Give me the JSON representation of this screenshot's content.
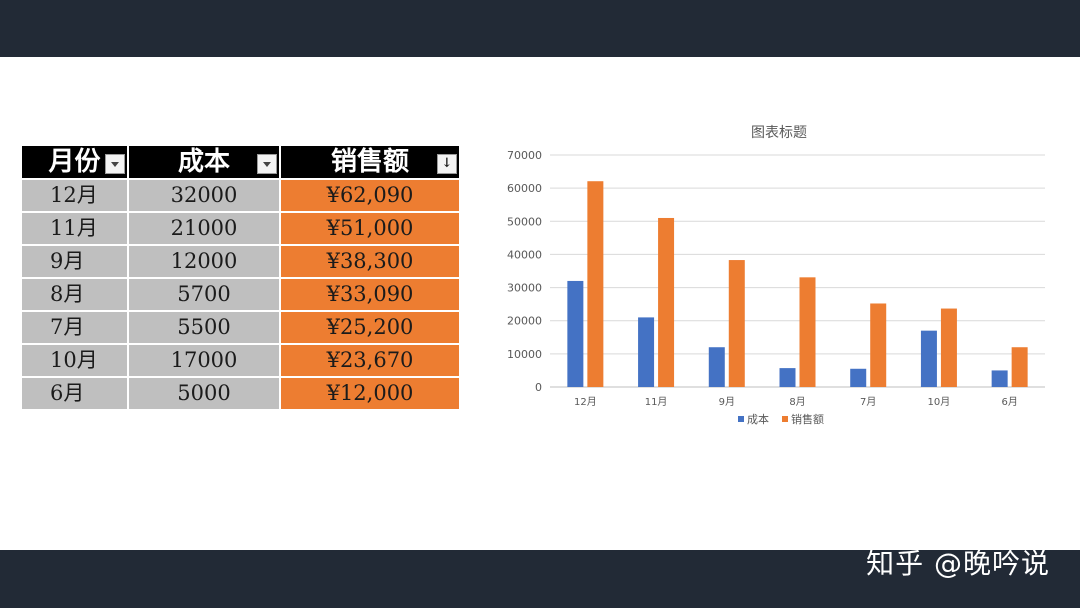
{
  "watermark": "知乎 @晚吟说",
  "table": {
    "headers": [
      "月份",
      "成本",
      "销售额"
    ],
    "rows": [
      {
        "month": "12月",
        "cost": "32000",
        "sales": "¥62,090"
      },
      {
        "month": "11月",
        "cost": "21000",
        "sales": "¥51,000"
      },
      {
        "month": "9月",
        "cost": "12000",
        "sales": "¥38,300"
      },
      {
        "month": "8月",
        "cost": "5700",
        "sales": "¥33,090"
      },
      {
        "month": "7月",
        "cost": "5500",
        "sales": "¥25,200"
      },
      {
        "month": "10月",
        "cost": "17000",
        "sales": "¥23,670"
      },
      {
        "month": "6月",
        "cost": "5000",
        "sales": "¥12,000"
      }
    ]
  },
  "colors": {
    "cost": "#4472c4",
    "sales": "#ed7d31",
    "bars": "#222a36"
  },
  "chart_data": {
    "type": "bar",
    "title": "图表标题",
    "categories": [
      "12月",
      "11月",
      "9月",
      "8月",
      "7月",
      "10月",
      "6月"
    ],
    "series": [
      {
        "name": "成本",
        "values": [
          32000,
          21000,
          12000,
          5700,
          5500,
          17000,
          5000
        ]
      },
      {
        "name": "销售额",
        "values": [
          62090,
          51000,
          38300,
          33090,
          25200,
          23670,
          12000
        ]
      }
    ],
    "yticks": [
      "0",
      "10000",
      "20000",
      "30000",
      "40000",
      "50000",
      "60000",
      "70000"
    ],
    "ylim": [
      0,
      70000
    ],
    "grid": true,
    "legend": "bottom"
  }
}
